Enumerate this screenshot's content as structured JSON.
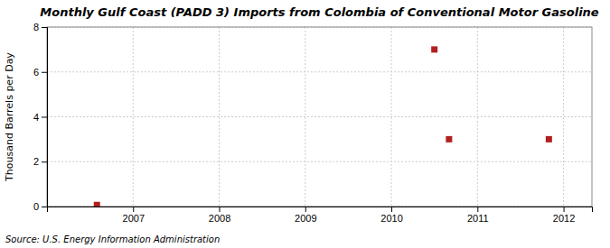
{
  "chart_data": {
    "type": "scatter",
    "title": "Monthly Gulf Coast (PADD 3) Imports from Colombia of Conventional Motor Gasoline",
    "y_label": "Thousand Barrels per Day",
    "source": "Source: U.S. Energy Information Administration",
    "x": [
      2006.58,
      2010.5,
      2010.67,
      2011.83
    ],
    "values": [
      0.07,
      7.0,
      3.0,
      3.0
    ],
    "color": "#b22020",
    "marker": "square",
    "xlim": [
      2006.0,
      2012.33
    ],
    "xticks": [
      2007,
      2008,
      2009,
      2010,
      2011,
      2012
    ],
    "ylim": [
      0,
      8
    ],
    "yticks": [
      0,
      2,
      4,
      6,
      8
    ],
    "grid": true
  }
}
